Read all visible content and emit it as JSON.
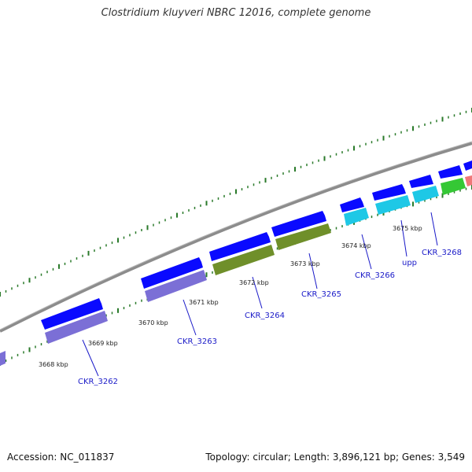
{
  "title": "Clostridium kluyveri NBRC 12016, complete genome",
  "footer": {
    "accession": "Accession: NC_011837",
    "summary": "Topology: circular; Length: 3,896,121 bp; Genes: 3,549"
  },
  "colors": {
    "backbone": "#8c8c8c",
    "tick_major": "#1e6e1e",
    "tick_minor": "#2a7a2a",
    "label": "#1a1ac8",
    "forward_strand": "#0a0aff",
    "cog_purple": "#7b6fd6",
    "cog_olive": "#6f8f2a",
    "cog_cyan": "#1ec8e6",
    "cog_green": "#35c835",
    "cog_salmon": "#f07878"
  },
  "kbp_labels": [
    "3668 kbp",
    "3669 kbp",
    "3670 kbp",
    "3671 kbp",
    "3672 kbp",
    "3673 kbp",
    "3674 kbp",
    "3675 kbp"
  ],
  "gene_labels": [
    "CKR_3262",
    "CKR_3263",
    "CKR_3264",
    "CKR_3265",
    "CKR_3266",
    "upp",
    "CKR_3268"
  ]
}
